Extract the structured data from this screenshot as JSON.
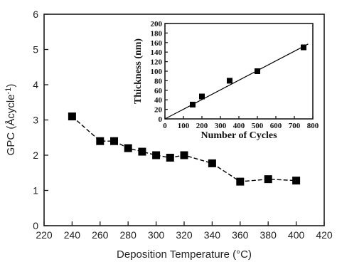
{
  "chart_data": [
    {
      "type": "line",
      "xlabel": "Deposition Temperature (°C)",
      "ylabel_prefix": "GPC (Å",
      "ylabel_unit": "cycle",
      "ylabel_exp": "-1",
      "ylabel_suffix": ")",
      "xlim": [
        220,
        420
      ],
      "ylim": [
        0,
        6
      ],
      "xticks": [
        "220",
        "240",
        "260",
        "280",
        "300",
        "320",
        "340",
        "360",
        "380",
        "400",
        "420"
      ],
      "yticks": [
        "0",
        "1",
        "2",
        "3",
        "4",
        "5",
        "6"
      ],
      "series": [
        {
          "marker": "square",
          "line_style": "dashed",
          "color": "#000000",
          "x": [
            240,
            260,
            270,
            280,
            290,
            300,
            310,
            320,
            340,
            360,
            380,
            400
          ],
          "y": [
            3.1,
            2.4,
            2.4,
            2.2,
            2.1,
            2.0,
            1.93,
            2.0,
            1.77,
            1.25,
            1.32,
            1.28
          ]
        }
      ],
      "grid": false
    },
    {
      "type": "scatter",
      "position": "inset-top-right",
      "xlabel": "Number of Cycles",
      "ylabel": "Thickness (nm)",
      "xlim": [
        0,
        800
      ],
      "ylim": [
        0,
        200
      ],
      "xticks": [
        "0",
        "100",
        "200",
        "300",
        "400",
        "500",
        "600",
        "700",
        "800"
      ],
      "yticks": [
        "0",
        "20",
        "40",
        "60",
        "80",
        "100",
        "120",
        "140",
        "160",
        "180",
        "200"
      ],
      "series": [
        {
          "marker": "square",
          "color": "#000000",
          "x": [
            150,
            200,
            350,
            500,
            750
          ],
          "y": [
            30,
            47,
            80,
            100,
            150
          ]
        }
      ],
      "fit_line": {
        "x": [
          0,
          775
        ],
        "y": [
          0,
          157
        ]
      },
      "grid": false
    }
  ]
}
